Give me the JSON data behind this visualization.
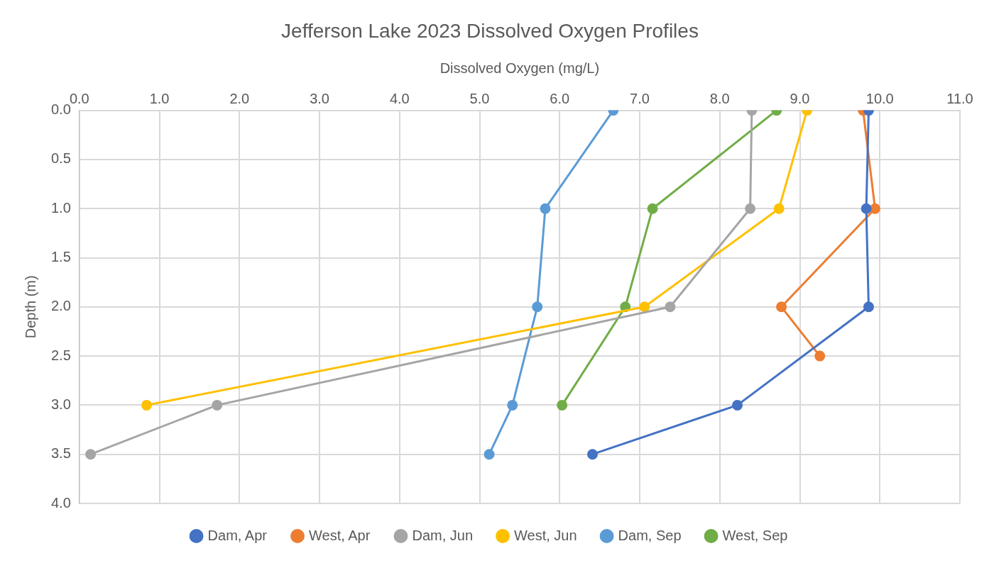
{
  "chart_data": {
    "type": "line",
    "title": "Jefferson Lake 2023 Dissolved Oxygen Profiles",
    "xlabel": "Dissolved Oxygen (mg/L)",
    "ylabel": "Depth (m)",
    "xlim": [
      0,
      11
    ],
    "xticks": [
      {
        "value": 0,
        "label": "0.0"
      },
      {
        "value": 1,
        "label": "1.0"
      },
      {
        "value": 2,
        "label": "2.0"
      },
      {
        "value": 3,
        "label": "3.0"
      },
      {
        "value": 4,
        "label": "4.0"
      },
      {
        "value": 5,
        "label": "5.0"
      },
      {
        "value": 6,
        "label": "6.0"
      },
      {
        "value": 7,
        "label": "7.0"
      },
      {
        "value": 8,
        "label": "8.0"
      },
      {
        "value": 9,
        "label": "9.0"
      },
      {
        "value": 10,
        "label": "10.0"
      },
      {
        "value": 11,
        "label": "11.0"
      }
    ],
    "ylim": [
      4,
      0
    ],
    "yticks": [
      {
        "value": 0,
        "label": "0.0"
      },
      {
        "value": 0.5,
        "label": "0.5"
      },
      {
        "value": 1,
        "label": "1.0"
      },
      {
        "value": 1.5,
        "label": "1.5"
      },
      {
        "value": 2,
        "label": "2.0"
      },
      {
        "value": 2.5,
        "label": "2.5"
      },
      {
        "value": 3,
        "label": "3.0"
      },
      {
        "value": 3.5,
        "label": "3.5"
      },
      {
        "value": 4,
        "label": "4.0"
      }
    ],
    "grid": true,
    "legend": "bottom",
    "marker": "circle",
    "line_style": "solid",
    "series": [
      {
        "name": "Dam, Apr",
        "color": "#4472c4",
        "x": [
          9.86,
          9.83,
          9.86,
          8.22,
          6.41
        ],
        "values": [
          0,
          1,
          2,
          3,
          3.5
        ]
      },
      {
        "name": "West, Apr",
        "color": "#ed7d31",
        "x": [
          9.79,
          9.94,
          8.77,
          9.25
        ],
        "values": [
          0,
          1,
          2,
          2.5
        ]
      },
      {
        "name": "Dam, Jun",
        "color": "#a5a5a5",
        "x": [
          8.4,
          8.38,
          7.38,
          1.72,
          0.14
        ],
        "values": [
          0,
          1,
          2,
          3,
          3.5
        ]
      },
      {
        "name": "West, Jun",
        "color": "#ffc000",
        "x": [
          9.09,
          8.74,
          7.06,
          0.84
        ],
        "values": [
          0,
          1,
          2,
          3
        ]
      },
      {
        "name": "Dam, Sep",
        "color": "#5b9bd5",
        "x": [
          6.67,
          5.82,
          5.72,
          5.41,
          5.12
        ],
        "values": [
          0,
          1,
          2,
          3,
          3.5
        ]
      },
      {
        "name": "West, Sep",
        "color": "#70ad47",
        "x": [
          8.71,
          7.16,
          6.82,
          6.03
        ],
        "values": [
          0,
          1,
          2,
          3
        ]
      }
    ]
  }
}
